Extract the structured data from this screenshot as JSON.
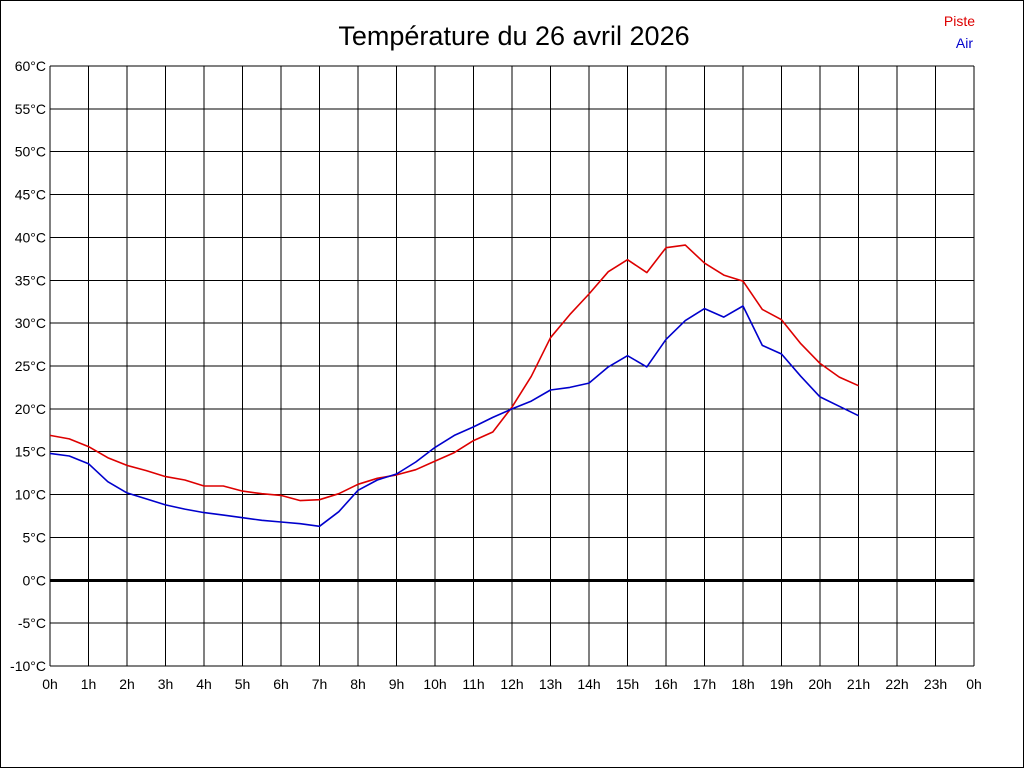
{
  "chart_data": {
    "type": "line",
    "title": "Température du 26 avril 2026",
    "xlabel": "",
    "ylabel": "",
    "x_ticks": [
      "0h",
      "1h",
      "2h",
      "3h",
      "4h",
      "5h",
      "6h",
      "7h",
      "8h",
      "9h",
      "10h",
      "11h",
      "12h",
      "13h",
      "14h",
      "15h",
      "16h",
      "17h",
      "18h",
      "19h",
      "20h",
      "21h",
      "22h",
      "23h",
      "0h"
    ],
    "y_ticks": [
      "60°C",
      "55°C",
      "50°C",
      "45°C",
      "40°C",
      "35°C",
      "30°C",
      "25°C",
      "20°C",
      "15°C",
      "10°C",
      "5°C",
      "0°C",
      "-5°C",
      "-10°C"
    ],
    "xlim": [
      0,
      24
    ],
    "ylim": [
      -10,
      60
    ],
    "grid": true,
    "zero_line": true,
    "legend_position": "top-right",
    "series": [
      {
        "name": "Piste",
        "color": "#dd0000",
        "x": [
          0,
          0.5,
          1,
          1.5,
          2,
          2.5,
          3,
          3.5,
          4,
          4.5,
          5,
          5.5,
          6,
          6.5,
          7,
          7.5,
          8,
          8.5,
          9,
          9.5,
          10,
          10.5,
          11,
          11.5,
          12,
          12.5,
          13,
          13.5,
          14,
          14.5,
          15,
          15.5,
          16,
          16.5,
          17,
          17.5,
          18,
          18.5,
          19,
          19.5,
          20,
          20.5,
          21
        ],
        "values": [
          16.9,
          16.5,
          15.6,
          14.3,
          13.4,
          12.8,
          12.1,
          11.7,
          11.0,
          11.0,
          10.4,
          10.1,
          9.9,
          9.3,
          9.4,
          10.1,
          11.2,
          11.9,
          12.3,
          12.9,
          13.9,
          14.9,
          16.3,
          17.3,
          20.2,
          23.8,
          28.3,
          31.0,
          33.4,
          36.0,
          37.4,
          35.9,
          38.8,
          39.1,
          37.0,
          35.6,
          34.9,
          31.6,
          30.4,
          27.6,
          25.3,
          23.7,
          22.7
        ]
      },
      {
        "name": "Air",
        "color": "#0000cc",
        "x": [
          0,
          0.5,
          1,
          1.5,
          2,
          2.5,
          3,
          3.5,
          4,
          4.5,
          5,
          5.5,
          6,
          6.5,
          7,
          7.5,
          8,
          8.5,
          9,
          9.5,
          10,
          10.5,
          11,
          11.5,
          12,
          12.5,
          13,
          13.5,
          14,
          14.5,
          15,
          15.5,
          16,
          16.5,
          17,
          17.5,
          18,
          18.5,
          19,
          19.5,
          20,
          20.5,
          21
        ],
        "values": [
          14.8,
          14.5,
          13.6,
          11.5,
          10.2,
          9.5,
          8.8,
          8.3,
          7.9,
          7.6,
          7.3,
          7.0,
          6.8,
          6.6,
          6.3,
          8.0,
          10.5,
          11.7,
          12.4,
          13.8,
          15.5,
          16.9,
          17.9,
          19.0,
          20.0,
          20.9,
          22.2,
          22.5,
          23.0,
          24.9,
          26.2,
          24.9,
          28.1,
          30.3,
          31.7,
          30.7,
          32.0,
          27.4,
          26.4,
          23.8,
          21.4,
          20.3,
          19.2
        ]
      }
    ]
  }
}
